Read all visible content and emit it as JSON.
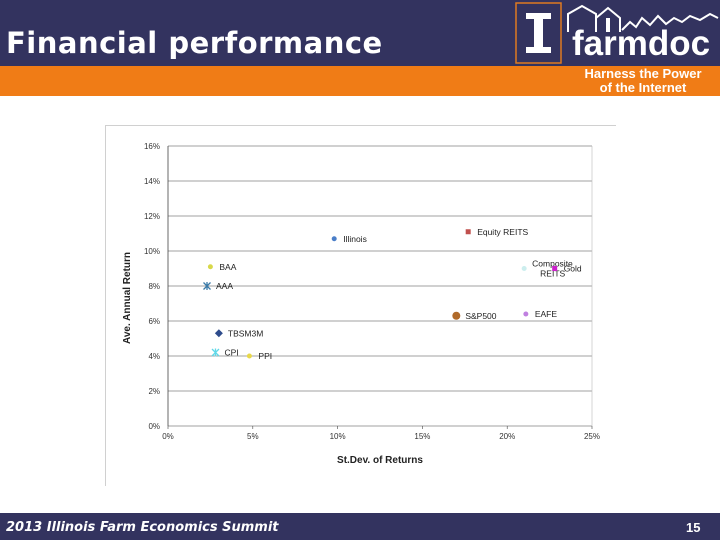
{
  "slide": {
    "title": "Financial performance",
    "footer": "2013 Illinois Farm Economics Summit",
    "page_number": "15"
  },
  "logo": {
    "word": "farmdoc",
    "tagline_1": "Harness the Power",
    "tagline_2": "of the Internet"
  },
  "colors": {
    "header": "#33335f",
    "band": "#f07c16",
    "footer": "#33335f"
  },
  "chart_data": {
    "type": "scatter",
    "xlabel": "St.Dev. of Returns",
    "ylabel": "Ave. Annual Return",
    "xlim": [
      0,
      25
    ],
    "ylim": [
      0,
      16
    ],
    "x_ticks": [
      "0%",
      "5%",
      "10%",
      "15%",
      "20%",
      "25%"
    ],
    "y_ticks": [
      "0%",
      "2%",
      "4%",
      "6%",
      "8%",
      "10%",
      "12%",
      "14%",
      "16%"
    ],
    "grid": "horizontal",
    "points": [
      {
        "label": "Illinois",
        "x": 9.8,
        "y": 10.7,
        "color": "#4a7ec8",
        "marker": "dot"
      },
      {
        "label": "Equity REITS",
        "x": 17.7,
        "y": 11.1,
        "color": "#c0504d",
        "marker": "square"
      },
      {
        "label": "BAA",
        "x": 2.5,
        "y": 9.1,
        "color": "#d8d84a",
        "marker": "dot"
      },
      {
        "label": "AAA",
        "x": 2.3,
        "y": 8.0,
        "color": "#3a7aa8",
        "marker": "star"
      },
      {
        "label": "Composite REITS",
        "x": 21.0,
        "y": 9.0,
        "color": "#cceeee",
        "marker": "dot"
      },
      {
        "label": "Gold",
        "x": 22.8,
        "y": 9.0,
        "color": "#cc22cc",
        "marker": "square"
      },
      {
        "label": "S&P500",
        "x": 17.0,
        "y": 6.3,
        "color": "#b06a2a",
        "marker": "dot"
      },
      {
        "label": "EAFE",
        "x": 21.1,
        "y": 6.4,
        "color": "#c080e0",
        "marker": "dot"
      },
      {
        "label": "TBSM3M",
        "x": 3.0,
        "y": 5.3,
        "color": "#2e4c8c",
        "marker": "diamond"
      },
      {
        "label": "CPI",
        "x": 2.8,
        "y": 4.2,
        "color": "#60d8e8",
        "marker": "star"
      },
      {
        "label": "PPI",
        "x": 4.8,
        "y": 4.0,
        "color": "#e8d84a",
        "marker": "dot"
      }
    ]
  }
}
